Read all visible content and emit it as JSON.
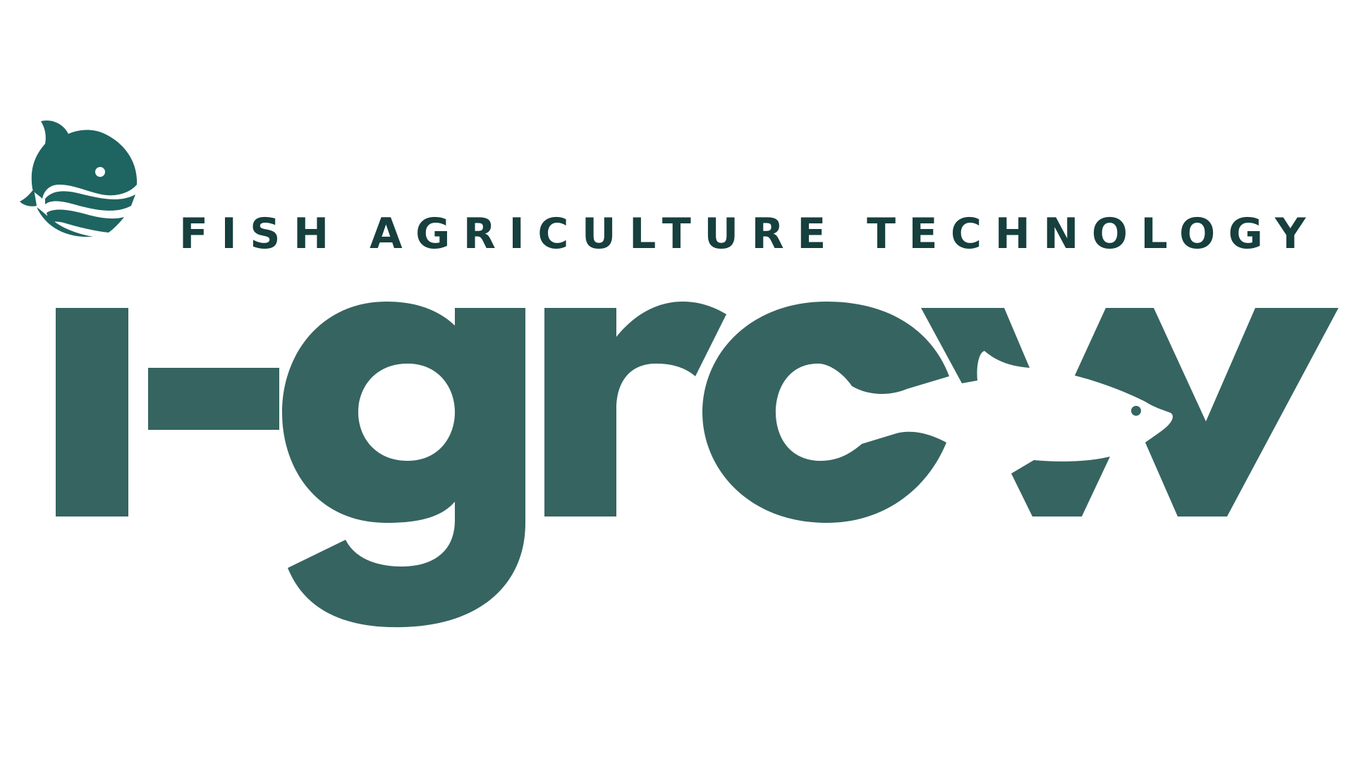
{
  "brand": {
    "wordmark": "i-grow",
    "tagline": "FISH AGRICULTURE TECHNOLOGY",
    "emblem_icon": "fish-waves-icon",
    "wordmark_fish_icon": "fish-silhouette-icon"
  },
  "colors": {
    "emblem": "#1E6461",
    "wordmark": "#366461",
    "tagline": "#163F3D",
    "background": "#FFFFFF"
  }
}
